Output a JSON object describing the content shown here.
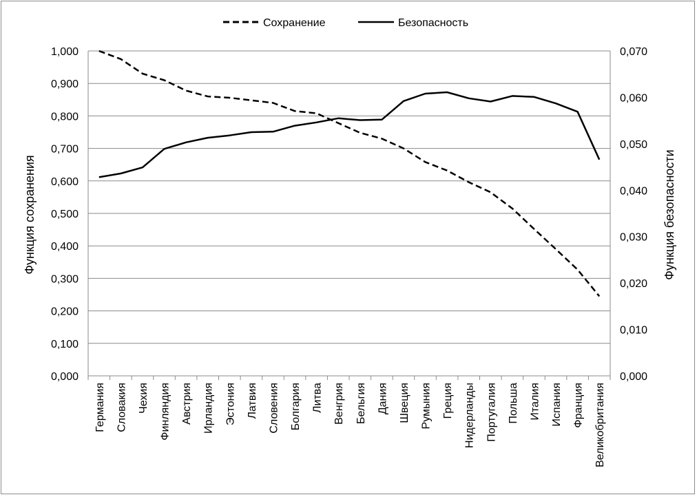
{
  "chart_data": {
    "type": "line",
    "categories": [
      "Германия",
      "Словакия",
      "Чехия",
      "Финляндия",
      "Австрия",
      "Ирландия",
      "Эстония",
      "Латвия",
      "Словения",
      "Болгария",
      "Литва",
      "Венгрия",
      "Бельгия",
      "Дания",
      "Швеция",
      "Румыния",
      "Греция",
      "Нидерланды",
      "Португалия",
      "Польша",
      "Италия",
      "Испания",
      "Франция",
      "Великобритания"
    ],
    "series": [
      {
        "name": "Сохранение",
        "axis": "left",
        "style": "dashed",
        "values": [
          1.0,
          0.975,
          0.93,
          0.91,
          0.878,
          0.86,
          0.856,
          0.848,
          0.84,
          0.815,
          0.808,
          0.778,
          0.748,
          0.73,
          0.7,
          0.658,
          0.632,
          0.596,
          0.565,
          0.515,
          0.452,
          0.39,
          0.327,
          0.245
        ]
      },
      {
        "name": "Безопасность",
        "axis": "right",
        "style": "solid",
        "values": [
          0.0428,
          0.0436,
          0.0449,
          0.0489,
          0.0503,
          0.0513,
          0.0518,
          0.0525,
          0.0526,
          0.0539,
          0.0546,
          0.0555,
          0.0551,
          0.0552,
          0.0592,
          0.0608,
          0.0611,
          0.0598,
          0.0591,
          0.0603,
          0.0601,
          0.0587,
          0.0569,
          0.0466
        ]
      }
    ],
    "y_left": {
      "label": "Функция сохранения",
      "range": [
        0,
        1
      ],
      "ticks": [
        "0,000",
        "0,100",
        "0,200",
        "0,300",
        "0,400",
        "0,500",
        "0,600",
        "0,700",
        "0,800",
        "0,900",
        "1,000"
      ]
    },
    "y_right": {
      "label": "Функция безопасности",
      "range": [
        0,
        0.07
      ],
      "ticks": [
        "0,000",
        "0,010",
        "0,020",
        "0,030",
        "0,040",
        "0,050",
        "0,060",
        "0,070"
      ]
    },
    "grid": true,
    "legend_position": "top-center"
  }
}
